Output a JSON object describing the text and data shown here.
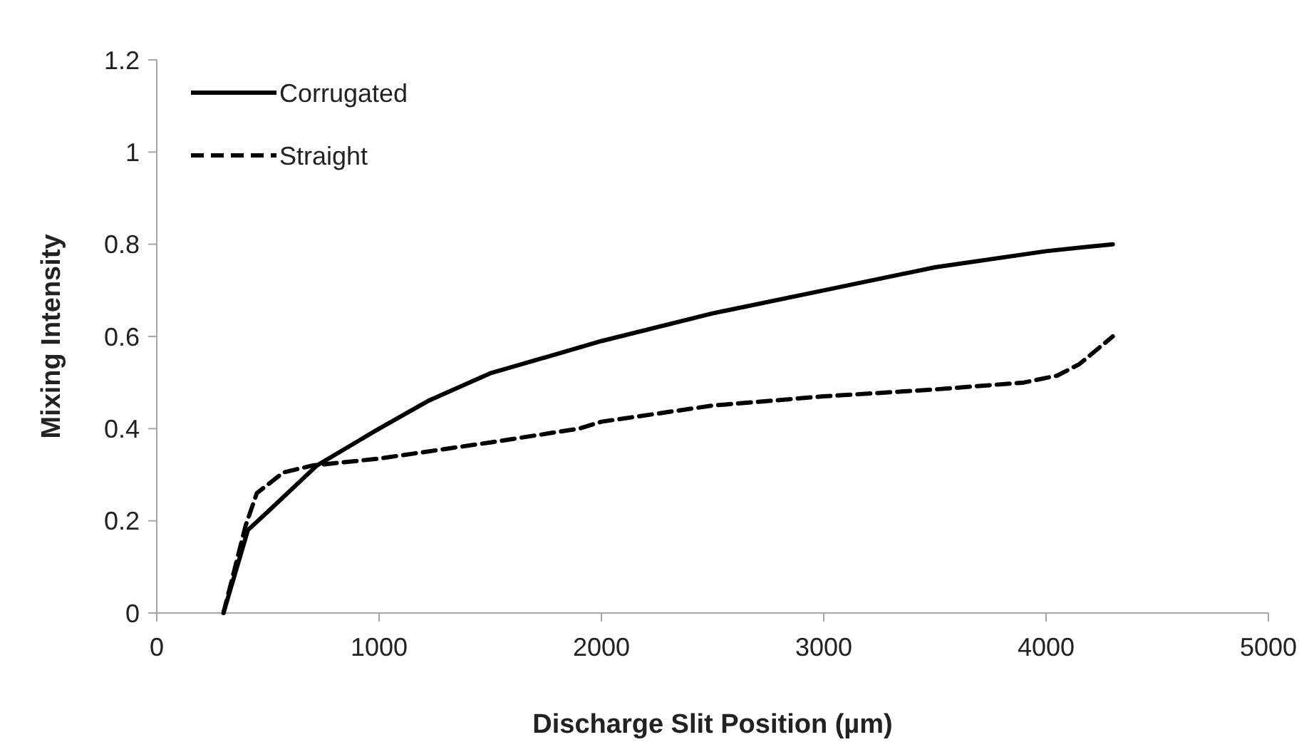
{
  "chart_data": {
    "type": "line",
    "xlabel": "Discharge Slit Position (µm)",
    "ylabel": "Mixing Intensity",
    "xlim": [
      0,
      5000
    ],
    "xticks": [
      0,
      1000,
      2000,
      3000,
      4000,
      5000
    ],
    "ylim": [
      0,
      1.2
    ],
    "yticks": [
      0,
      0.2,
      0.4,
      0.6,
      0.8,
      1,
      1.2
    ],
    "grid": false,
    "legend": "top left",
    "series": [
      {
        "name": "Corrugated",
        "color": "#000000",
        "line_style": "solid",
        "x": [
          300,
          410,
          500,
          720,
          1000,
          1220,
          1500,
          2000,
          2500,
          3000,
          3500,
          4000,
          4300
        ],
        "values": [
          0,
          0.18,
          0.22,
          0.32,
          0.4,
          0.46,
          0.52,
          0.59,
          0.65,
          0.7,
          0.75,
          0.785,
          0.8
        ]
      },
      {
        "name": "Straight",
        "color": "#000000",
        "line_style": "dashed",
        "x": [
          300,
          400,
          450,
          570,
          700,
          1000,
          1500,
          1900,
          2000,
          2500,
          3000,
          3500,
          3900,
          4050,
          4150,
          4300
        ],
        "values": [
          0,
          0.19,
          0.26,
          0.305,
          0.32,
          0.335,
          0.37,
          0.4,
          0.415,
          0.45,
          0.47,
          0.485,
          0.5,
          0.515,
          0.54,
          0.6
        ]
      }
    ]
  }
}
